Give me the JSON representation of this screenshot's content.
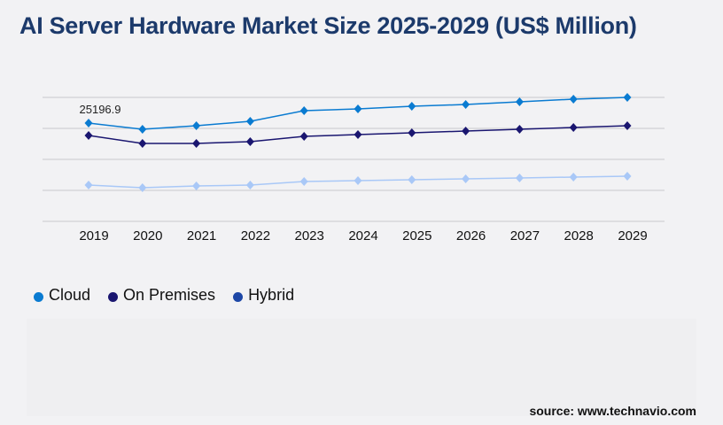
{
  "title": "AI Server Hardware Market Size 2025-2029 (US$ Million)",
  "source": "source: www.technavio.com",
  "chart_data": {
    "type": "line",
    "title": "AI Server Hardware Market Size 2025-2029 (US$ Million)",
    "xlabel": "",
    "ylabel": "",
    "categories": [
      "2019",
      "2020",
      "2021",
      "2022",
      "2023",
      "2024",
      "2025",
      "2026",
      "2027",
      "2028",
      "2029"
    ],
    "ylim": [
      0,
      31780
    ],
    "grid": true,
    "legend_position": "bottom-left",
    "series": [
      {
        "name": "Cloud",
        "color": "#0a7bd1",
        "legend_color": "#0a7bd1",
        "values": [
          25196.9,
          23608,
          24516,
          25651,
          28375,
          28829,
          29510,
          29964,
          30645,
          31326,
          31780
        ]
      },
      {
        "name": "On Premises",
        "color": "#1a1670",
        "legend_color": "#1a1670",
        "values": [
          22019,
          19976,
          19976,
          20430,
          21792,
          22246,
          22700,
          23154,
          23608,
          24062,
          24516
        ]
      },
      {
        "name": "Hybrid",
        "color": "#a9c8f7",
        "legend_color": "#1d47a6",
        "values": [
          9307,
          8626,
          9080,
          9307,
          10215,
          10442,
          10669,
          10896,
          11123,
          11350,
          11577
        ]
      }
    ],
    "data_labels": [
      {
        "series": "Cloud",
        "category": "2019",
        "text": "25196.9"
      }
    ]
  }
}
